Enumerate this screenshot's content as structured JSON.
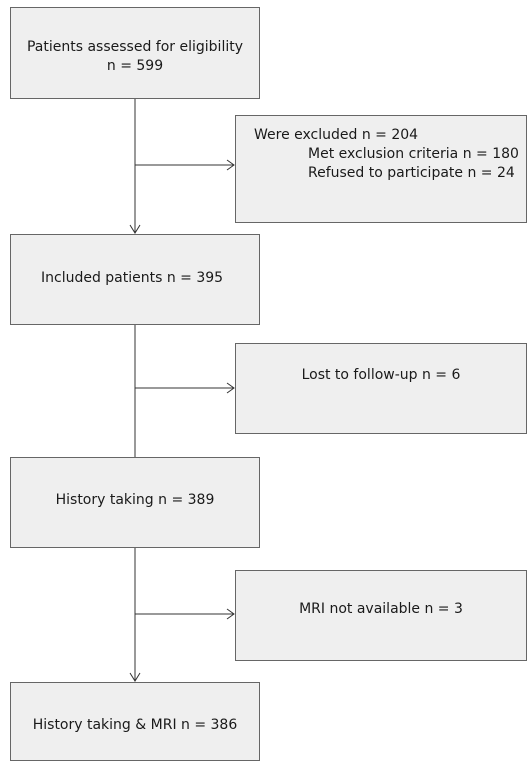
{
  "boxes": {
    "assessed": {
      "line1": "Patients assessed for eligibility",
      "line2": "n = 599"
    },
    "excluded": {
      "line1": "Were excluded n = 204",
      "line2": "Met exclusion criteria n = 180",
      "line3": "Refused to participate n = 24"
    },
    "included": {
      "text": "Included patients n = 395"
    },
    "lost": {
      "text": "Lost to follow-up n = 6"
    },
    "history": {
      "text": "History taking n = 389"
    },
    "mri_missing": {
      "text": "MRI not available n = 3"
    },
    "final": {
      "text": "History taking & MRI  n = 386"
    }
  },
  "colors": {
    "box_fill": "#efefef",
    "box_border": "#666666",
    "line": "#333333",
    "text": "#1a1a1a"
  }
}
